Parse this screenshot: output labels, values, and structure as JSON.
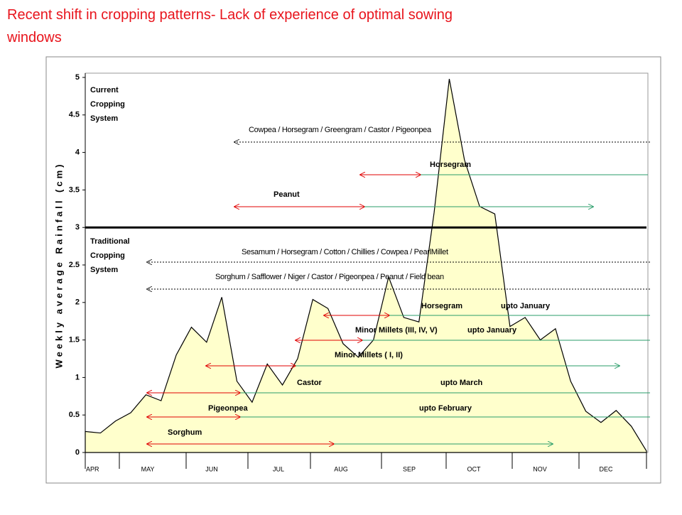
{
  "chart_data": {
    "type": "area",
    "title": "Recent shift in cropping patterns- Lack of experience of optimal sowing windows",
    "ylabel": "Weekly average Rainfall (cm)",
    "months": [
      "APR",
      "MAY",
      "JUN",
      "JUL",
      "AUG",
      "SEP",
      "OCT",
      "NOV",
      "DEC"
    ],
    "values": [
      0.28,
      0.26,
      0.42,
      0.53,
      0.77,
      0.69,
      1.3,
      1.67,
      1.47,
      2.07,
      0.95,
      0.67,
      1.18,
      0.9,
      1.25,
      2.04,
      1.92,
      1.45,
      1.27,
      1.5,
      2.34,
      1.8,
      1.74,
      3.2,
      4.98,
      3.9,
      3.28,
      3.18,
      1.68,
      1.8,
      1.5,
      1.65,
      0.95,
      0.55,
      0.4,
      0.56,
      0.35,
      0.02
    ],
    "color": "#ffffcc",
    "ylim": [
      0,
      5
    ],
    "yticks": [
      0,
      0.5,
      1,
      1.5,
      2,
      2.5,
      3,
      3.5,
      4,
      4.5,
      5
    ],
    "divider": 3,
    "sections": [
      {
        "lines": [
          "Current",
          "Cropping",
          "System"
        ]
      },
      {
        "lines": [
          "Traditional",
          "Cropping",
          "System"
        ]
      }
    ],
    "annotations": [
      {
        "label": "Cowpea / Horsegram / Greengram / Castor / Pigeonpea"
      },
      {
        "label": "Horsegram"
      },
      {
        "label": "Peanut"
      },
      {
        "label": "Sesamum / Horsegram / Cotton / Chillies / Cowpea / PearlMillet"
      },
      {
        "label": "Sorghum / Safflower / Niger / Castor / Pigeonpea / Peanut / Field bean"
      },
      {
        "label": "Horsegram",
        "until": "upto January"
      },
      {
        "label": "Minor Millets (III, IV, V)",
        "until": "upto January"
      },
      {
        "label": "Minor Millets ( I, II)"
      },
      {
        "label": "Castor",
        "until": "upto March"
      },
      {
        "label": "Pigeonpea",
        "until": "upto February"
      },
      {
        "label": "Sorghum"
      }
    ]
  }
}
